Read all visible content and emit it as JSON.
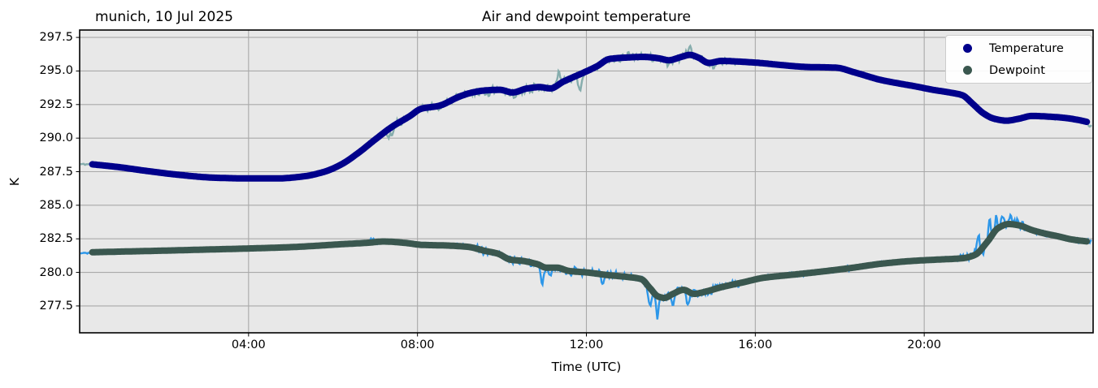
{
  "figure": {
    "title": "Air and dewpoint temperature",
    "subtitle_left": "munich, 10 Jul 2025",
    "xlabel": "Time (UTC)",
    "ylabel": "K"
  },
  "legend": {
    "position": "upper right",
    "items": [
      {
        "label": "Temperature",
        "color": "#00008b"
      },
      {
        "label": "Dewpoint",
        "color": "#3a574f"
      }
    ]
  },
  "colors": {
    "plot_background": "#e8e8e8",
    "figure_background": "#ffffff",
    "gridline": "#a9a9a9",
    "spine": "#000000",
    "temperature_smooth": "#00008b",
    "temperature_raw": "#86adad",
    "dewpoint_smooth": "#3a574f",
    "dewpoint_raw": "#2d97e9"
  },
  "chart_data": {
    "type": "line",
    "title": "Air and dewpoint temperature",
    "subtitle": "munich, 10 Jul 2025",
    "xlabel": "Time (UTC)",
    "ylabel": "K",
    "x_unit": "hours UTC, 10 Jul 2025",
    "xlim": [
      0,
      24
    ],
    "ylim": [
      275.5,
      298.05
    ],
    "grid": true,
    "legend_position": "upper right",
    "x_ticks": [
      {
        "value": 4,
        "label": "04:00"
      },
      {
        "value": 8,
        "label": "08:00"
      },
      {
        "value": 12,
        "label": "12:00"
      },
      {
        "value": 16,
        "label": "16:00"
      },
      {
        "value": 20,
        "label": "20:00"
      }
    ],
    "y_ticks": [
      {
        "value": 277.5,
        "label": "277.5"
      },
      {
        "value": 280.0,
        "label": "280.0"
      },
      {
        "value": 282.5,
        "label": "282.5"
      },
      {
        "value": 285.0,
        "label": "285.0"
      },
      {
        "value": 287.5,
        "label": "287.5"
      },
      {
        "value": 290.0,
        "label": "290.0"
      },
      {
        "value": 292.5,
        "label": "292.5"
      },
      {
        "value": 295.0,
        "label": "295.0"
      },
      {
        "value": 297.5,
        "label": "297.5"
      }
    ],
    "series": [
      {
        "name": "Temperature (raw)",
        "role": "raw",
        "base": "Temperature",
        "color": "#86adad",
        "line_width": 2.4,
        "t_range": [
          0.02,
          23.97
        ],
        "noise": {
          "seed": 11,
          "step": 0.02,
          "envelope": [
            [
              0,
              7.2,
              0.07
            ],
            [
              7.2,
              15.6,
              0.28
            ],
            [
              15.6,
              20.9,
              0.09
            ],
            [
              20.9,
              24,
              0.13
            ]
          ],
          "spikes": [
            [
              7.35,
              -0.5,
              0.07
            ],
            [
              8.95,
              0.4,
              0.07
            ],
            [
              9.65,
              -0.45,
              0.06
            ],
            [
              10.3,
              -0.35,
              0.06
            ],
            [
              11.35,
              0.85,
              0.07
            ],
            [
              11.85,
              -1.05,
              0.06
            ],
            [
              13.0,
              0.25,
              0.09
            ],
            [
              13.95,
              -0.45,
              0.07
            ],
            [
              14.45,
              0.45,
              0.08
            ],
            [
              15.0,
              -0.55,
              0.07
            ],
            [
              23.93,
              -0.3,
              0.1
            ]
          ]
        }
      },
      {
        "name": "Dewpoint (raw)",
        "role": "raw",
        "base": "Dewpoint",
        "color": "#2d97e9",
        "line_width": 2.4,
        "t_range": [
          0.02,
          23.97
        ],
        "noise": {
          "seed": 29,
          "step": 0.02,
          "envelope": [
            [
              0,
              9.4,
              0.12
            ],
            [
              9.4,
              15.6,
              0.3
            ],
            [
              15.6,
              20.85,
              0.15
            ],
            [
              20.85,
              22.4,
              0.4
            ],
            [
              22.4,
              24,
              0.18
            ]
          ],
          "spikes": [
            [
              6.9,
              0.2,
              0.08
            ],
            [
              9.0,
              0.25,
              0.06
            ],
            [
              10.95,
              -1.35,
              0.05
            ],
            [
              11.15,
              -0.55,
              0.05
            ],
            [
              12.4,
              -0.45,
              0.05
            ],
            [
              13.5,
              -1.5,
              0.05
            ],
            [
              13.68,
              -1.55,
              0.04
            ],
            [
              14.05,
              -0.75,
              0.04
            ],
            [
              14.4,
              -1.05,
              0.04
            ],
            [
              21.28,
              1.3,
              0.04
            ],
            [
              21.4,
              -0.55,
              0.03
            ],
            [
              21.55,
              1.25,
              0.04
            ],
            [
              21.7,
              0.95,
              0.04
            ],
            [
              21.88,
              0.75,
              0.05
            ],
            [
              22.05,
              0.55,
              0.05
            ]
          ]
        }
      },
      {
        "name": "Temperature",
        "role": "smoothed",
        "color": "#00008b",
        "line_width": 8,
        "points": [
          [
            0.3,
            288.05
          ],
          [
            0.9,
            287.85
          ],
          [
            1.6,
            287.55
          ],
          [
            2.4,
            287.25
          ],
          [
            3.2,
            287.05
          ],
          [
            4.0,
            287.0
          ],
          [
            4.7,
            287.0
          ],
          [
            5.3,
            287.15
          ],
          [
            5.8,
            287.5
          ],
          [
            6.2,
            288.05
          ],
          [
            6.6,
            288.9
          ],
          [
            7.0,
            289.9
          ],
          [
            7.4,
            290.85
          ],
          [
            7.8,
            291.6
          ],
          [
            8.1,
            292.2
          ],
          [
            8.5,
            292.4
          ],
          [
            9.0,
            293.1
          ],
          [
            9.3,
            293.4
          ],
          [
            9.6,
            293.55
          ],
          [
            9.95,
            293.6
          ],
          [
            10.25,
            293.4
          ],
          [
            10.6,
            293.7
          ],
          [
            10.9,
            293.8
          ],
          [
            11.15,
            293.7
          ],
          [
            11.45,
            294.2
          ],
          [
            11.95,
            294.9
          ],
          [
            12.25,
            295.35
          ],
          [
            12.55,
            295.9
          ],
          [
            12.95,
            296.0
          ],
          [
            13.35,
            296.05
          ],
          [
            13.7,
            295.95
          ],
          [
            13.95,
            295.8
          ],
          [
            14.25,
            296.05
          ],
          [
            14.45,
            296.2
          ],
          [
            14.65,
            296.0
          ],
          [
            14.9,
            295.6
          ],
          [
            15.2,
            295.75
          ],
          [
            15.6,
            295.7
          ],
          [
            16.1,
            295.6
          ],
          [
            16.6,
            295.45
          ],
          [
            17.2,
            295.3
          ],
          [
            17.9,
            295.25
          ],
          [
            18.4,
            294.85
          ],
          [
            18.95,
            294.35
          ],
          [
            19.35,
            294.1
          ],
          [
            19.8,
            293.85
          ],
          [
            20.2,
            293.6
          ],
          [
            20.6,
            293.4
          ],
          [
            20.9,
            293.2
          ],
          [
            21.15,
            292.55
          ],
          [
            21.4,
            291.85
          ],
          [
            21.65,
            291.45
          ],
          [
            21.95,
            291.3
          ],
          [
            22.25,
            291.45
          ],
          [
            22.55,
            291.65
          ],
          [
            22.95,
            291.6
          ],
          [
            23.35,
            291.5
          ],
          [
            23.65,
            291.35
          ],
          [
            23.87,
            291.2
          ]
        ]
      },
      {
        "name": "Dewpoint",
        "role": "smoothed",
        "color": "#3a574f",
        "line_width": 8,
        "points": [
          [
            0.3,
            281.5
          ],
          [
            1.0,
            281.55
          ],
          [
            2.0,
            281.62
          ],
          [
            3.0,
            281.7
          ],
          [
            4.0,
            281.78
          ],
          [
            5.0,
            281.88
          ],
          [
            5.6,
            281.98
          ],
          [
            6.2,
            282.1
          ],
          [
            6.8,
            282.2
          ],
          [
            7.2,
            282.3
          ],
          [
            7.7,
            282.2
          ],
          [
            8.1,
            282.05
          ],
          [
            8.7,
            282.0
          ],
          [
            9.2,
            281.9
          ],
          [
            9.6,
            281.6
          ],
          [
            9.9,
            281.4
          ],
          [
            10.2,
            280.95
          ],
          [
            10.5,
            280.85
          ],
          [
            10.85,
            280.6
          ],
          [
            11.05,
            280.35
          ],
          [
            11.3,
            280.35
          ],
          [
            11.6,
            280.1
          ],
          [
            12.0,
            280.0
          ],
          [
            12.5,
            279.8
          ],
          [
            13.0,
            279.65
          ],
          [
            13.3,
            279.5
          ],
          [
            13.5,
            278.85
          ],
          [
            13.7,
            278.2
          ],
          [
            13.85,
            278.1
          ],
          [
            14.05,
            278.4
          ],
          [
            14.3,
            278.7
          ],
          [
            14.55,
            278.4
          ],
          [
            14.8,
            278.55
          ],
          [
            15.2,
            278.9
          ],
          [
            15.7,
            279.25
          ],
          [
            16.2,
            279.6
          ],
          [
            16.8,
            279.8
          ],
          [
            17.4,
            280.0
          ],
          [
            18.2,
            280.3
          ],
          [
            19.0,
            280.65
          ],
          [
            19.7,
            280.85
          ],
          [
            20.3,
            280.95
          ],
          [
            20.9,
            281.05
          ],
          [
            21.2,
            281.3
          ],
          [
            21.5,
            282.3
          ],
          [
            21.75,
            283.3
          ],
          [
            22.0,
            283.6
          ],
          [
            22.25,
            283.5
          ],
          [
            22.55,
            283.15
          ],
          [
            22.85,
            282.9
          ],
          [
            23.15,
            282.7
          ],
          [
            23.5,
            282.45
          ],
          [
            23.87,
            282.3
          ]
        ]
      }
    ]
  }
}
